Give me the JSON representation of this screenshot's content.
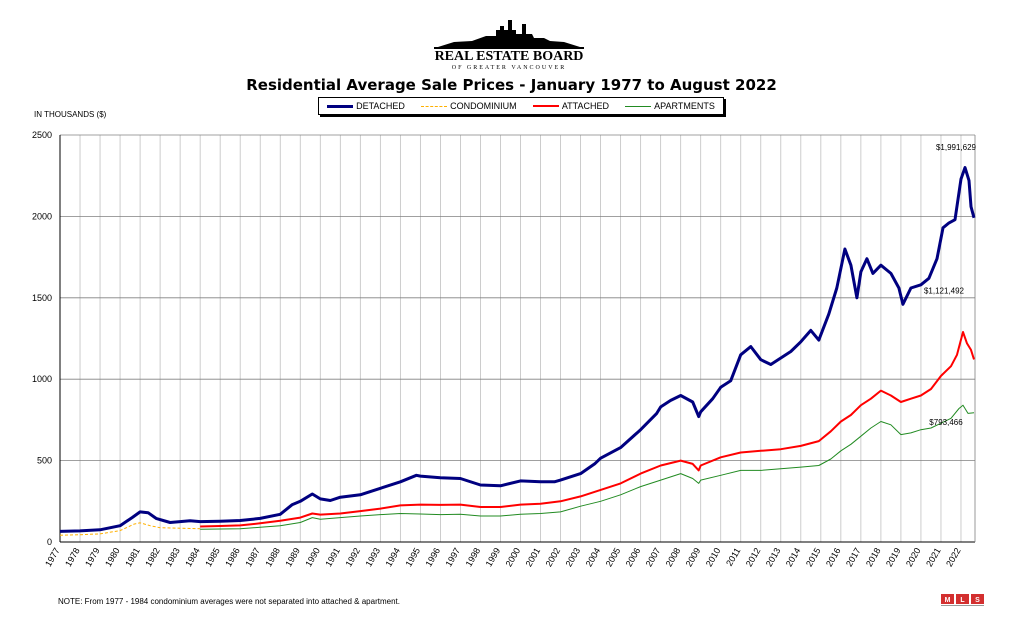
{
  "header": {
    "logo_title": "REAL ESTATE BOARD",
    "logo_subtitle": "OF GREATER VANCOUVER"
  },
  "chart_data": {
    "type": "line",
    "title": "Residential Average Sale Prices  -  January 1977 to August 2022",
    "ylabel": "IN THOUSANDS ($)",
    "xlabel": "",
    "ylim": [
      0,
      2500
    ],
    "yticks": [
      0,
      500,
      1000,
      1500,
      2000,
      2500
    ],
    "xlim": [
      1977,
      2022.7
    ],
    "xticks": [
      "1977",
      "1978",
      "1979",
      "1980",
      "1981",
      "1982",
      "1983",
      "1984",
      "1985",
      "1986",
      "1987",
      "1988",
      "1989",
      "1990",
      "1991",
      "1992",
      "1993",
      "1994",
      "1995",
      "1996",
      "1997",
      "1998",
      "1999",
      "2000",
      "2001",
      "2002",
      "2003",
      "2004",
      "2005",
      "2006",
      "2007",
      "2008",
      "2009",
      "2010",
      "2011",
      "2012",
      "2013",
      "2014",
      "2015",
      "2016",
      "2017",
      "2018",
      "2019",
      "2020",
      "2021",
      "2022"
    ],
    "grid": true,
    "legend_position": "top",
    "series": [
      {
        "name": "DETACHED",
        "color": "#000080",
        "style": "solid",
        "points": [
          [
            1977,
            65
          ],
          [
            1978,
            68
          ],
          [
            1979,
            75
          ],
          [
            1980,
            100
          ],
          [
            1980.6,
            150
          ],
          [
            1981,
            185
          ],
          [
            1981.4,
            180
          ],
          [
            1981.8,
            145
          ],
          [
            1982.5,
            120
          ],
          [
            1983,
            125
          ],
          [
            1983.5,
            130
          ],
          [
            1984,
            125
          ],
          [
            1985,
            128
          ],
          [
            1986,
            132
          ],
          [
            1987,
            145
          ],
          [
            1988,
            170
          ],
          [
            1988.6,
            230
          ],
          [
            1989,
            250
          ],
          [
            1989.6,
            295
          ],
          [
            1990,
            265
          ],
          [
            1990.5,
            255
          ],
          [
            1991,
            275
          ],
          [
            1992,
            290
          ],
          [
            1993,
            330
          ],
          [
            1994,
            370
          ],
          [
            1994.8,
            410
          ],
          [
            1995,
            405
          ],
          [
            1996,
            395
          ],
          [
            1997,
            390
          ],
          [
            1998,
            350
          ],
          [
            1999,
            345
          ],
          [
            2000,
            375
          ],
          [
            2001,
            370
          ],
          [
            2001.7,
            370
          ],
          [
            2002,
            380
          ],
          [
            2003,
            420
          ],
          [
            2003.7,
            480
          ],
          [
            2004,
            515
          ],
          [
            2005,
            580
          ],
          [
            2006,
            690
          ],
          [
            2006.8,
            790
          ],
          [
            2007,
            830
          ],
          [
            2007.5,
            870
          ],
          [
            2008,
            900
          ],
          [
            2008.6,
            860
          ],
          [
            2008.9,
            770
          ],
          [
            2009,
            800
          ],
          [
            2009.6,
            880
          ],
          [
            2010,
            950
          ],
          [
            2010.5,
            990
          ],
          [
            2011,
            1150
          ],
          [
            2011.5,
            1200
          ],
          [
            2012,
            1120
          ],
          [
            2012.5,
            1090
          ],
          [
            2013,
            1130
          ],
          [
            2013.5,
            1170
          ],
          [
            2014,
            1230
          ],
          [
            2014.5,
            1300
          ],
          [
            2014.9,
            1240
          ],
          [
            2015.4,
            1400
          ],
          [
            2015.8,
            1560
          ],
          [
            2016.2,
            1800
          ],
          [
            2016.5,
            1700
          ],
          [
            2016.8,
            1500
          ],
          [
            2017,
            1660
          ],
          [
            2017.3,
            1740
          ],
          [
            2017.6,
            1650
          ],
          [
            2018,
            1700
          ],
          [
            2018.5,
            1650
          ],
          [
            2018.9,
            1560
          ],
          [
            2019.1,
            1460
          ],
          [
            2019.5,
            1560
          ],
          [
            2020,
            1580
          ],
          [
            2020.4,
            1620
          ],
          [
            2020.8,
            1740
          ],
          [
            2021.1,
            1930
          ],
          [
            2021.4,
            1960
          ],
          [
            2021.7,
            1980
          ],
          [
            2022.0,
            2230
          ],
          [
            2022.2,
            2300
          ],
          [
            2022.4,
            2220
          ],
          [
            2022.5,
            2060
          ],
          [
            2022.65,
            1991.629
          ]
        ]
      },
      {
        "name": "CONDOMINIUM",
        "color": "#FFB000",
        "style": "dashed",
        "points": [
          [
            1977,
            42
          ],
          [
            1978,
            45
          ],
          [
            1979,
            50
          ],
          [
            1980,
            70
          ],
          [
            1980.7,
            110
          ],
          [
            1981,
            118
          ],
          [
            1981.5,
            100
          ],
          [
            1982,
            88
          ],
          [
            1983,
            85
          ],
          [
            1984,
            82
          ]
        ]
      },
      {
        "name": "ATTACHED",
        "color": "#FF0000",
        "style": "solid",
        "points": [
          [
            1984,
            95
          ],
          [
            1985,
            98
          ],
          [
            1986,
            102
          ],
          [
            1987,
            115
          ],
          [
            1988,
            130
          ],
          [
            1989,
            150
          ],
          [
            1989.6,
            175
          ],
          [
            1990,
            168
          ],
          [
            1991,
            175
          ],
          [
            1992,
            190
          ],
          [
            1993,
            205
          ],
          [
            1994,
            225
          ],
          [
            1995,
            230
          ],
          [
            1996,
            228
          ],
          [
            1997,
            230
          ],
          [
            1998,
            215
          ],
          [
            1999,
            215
          ],
          [
            2000,
            230
          ],
          [
            2001,
            235
          ],
          [
            2002,
            250
          ],
          [
            2003,
            280
          ],
          [
            2004,
            320
          ],
          [
            2005,
            360
          ],
          [
            2006,
            420
          ],
          [
            2007,
            470
          ],
          [
            2008,
            500
          ],
          [
            2008.6,
            480
          ],
          [
            2008.9,
            440
          ],
          [
            2009,
            470
          ],
          [
            2010,
            520
          ],
          [
            2011,
            550
          ],
          [
            2012,
            560
          ],
          [
            2013,
            570
          ],
          [
            2014,
            590
          ],
          [
            2014.9,
            620
          ],
          [
            2015.5,
            680
          ],
          [
            2016,
            740
          ],
          [
            2016.5,
            780
          ],
          [
            2017,
            840
          ],
          [
            2017.5,
            880
          ],
          [
            2018,
            930
          ],
          [
            2018.5,
            900
          ],
          [
            2019,
            860
          ],
          [
            2019.5,
            880
          ],
          [
            2020,
            900
          ],
          [
            2020.5,
            940
          ],
          [
            2021,
            1020
          ],
          [
            2021.5,
            1080
          ],
          [
            2021.8,
            1150
          ],
          [
            2022.1,
            1290
          ],
          [
            2022.3,
            1220
          ],
          [
            2022.5,
            1180
          ],
          [
            2022.65,
            1121.492
          ]
        ]
      },
      {
        "name": "APARTMENTS",
        "color": "#228B22",
        "style": "solid",
        "points": [
          [
            1984,
            78
          ],
          [
            1985,
            80
          ],
          [
            1986,
            82
          ],
          [
            1987,
            90
          ],
          [
            1988,
            100
          ],
          [
            1989,
            120
          ],
          [
            1989.6,
            150
          ],
          [
            1990,
            140
          ],
          [
            1991,
            150
          ],
          [
            1992,
            160
          ],
          [
            1993,
            168
          ],
          [
            1994,
            175
          ],
          [
            1995,
            172
          ],
          [
            1996,
            168
          ],
          [
            1997,
            170
          ],
          [
            1998,
            160
          ],
          [
            1999,
            160
          ],
          [
            2000,
            170
          ],
          [
            2001,
            175
          ],
          [
            2002,
            185
          ],
          [
            2003,
            220
          ],
          [
            2004,
            250
          ],
          [
            2005,
            290
          ],
          [
            2006,
            340
          ],
          [
            2007,
            380
          ],
          [
            2008,
            420
          ],
          [
            2008.6,
            390
          ],
          [
            2008.9,
            360
          ],
          [
            2009,
            380
          ],
          [
            2010,
            410
          ],
          [
            2011,
            440
          ],
          [
            2012,
            440
          ],
          [
            2013,
            450
          ],
          [
            2014,
            460
          ],
          [
            2014.9,
            470
          ],
          [
            2015.5,
            510
          ],
          [
            2016,
            560
          ],
          [
            2016.5,
            600
          ],
          [
            2017,
            650
          ],
          [
            2017.5,
            700
          ],
          [
            2018,
            740
          ],
          [
            2018.5,
            720
          ],
          [
            2019,
            660
          ],
          [
            2019.5,
            670
          ],
          [
            2020,
            690
          ],
          [
            2020.5,
            700
          ],
          [
            2021,
            730
          ],
          [
            2021.5,
            760
          ],
          [
            2021.9,
            820
          ],
          [
            2022.1,
            840
          ],
          [
            2022.35,
            790
          ],
          [
            2022.65,
            793.466
          ]
        ]
      }
    ],
    "annotations": [
      {
        "text": "$1,991,629",
        "x": 2022.65,
        "y": 1991.629
      },
      {
        "text": "$1,121,492",
        "x": 2022.65,
        "y": 1121.492
      },
      {
        "text": "$793,466",
        "x": 2022.65,
        "y": 793.466
      }
    ]
  },
  "footnote": "NOTE:  From 1977 - 1984 condominium averages were not separated into attached & apartment.",
  "mls_logo": {
    "icon": "mls-logo-icon",
    "color": "#d32f2f"
  }
}
